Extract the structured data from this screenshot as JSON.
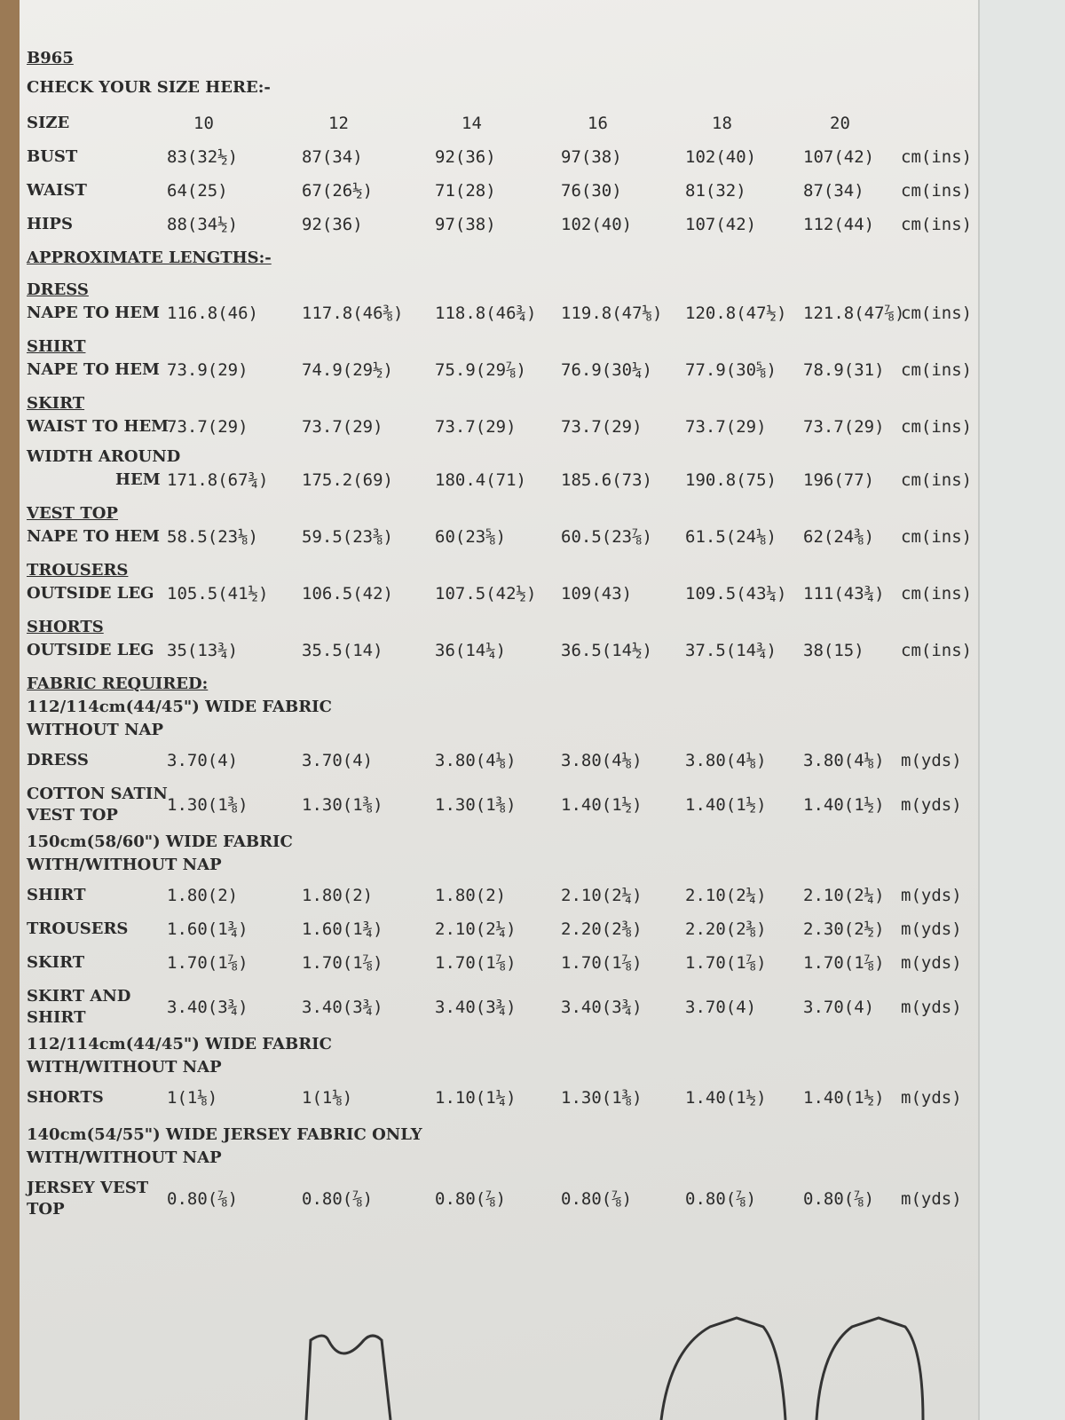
{
  "code": "B965",
  "heading": "CHECK YOUR SIZE HERE:-",
  "sizes": {
    "label": "SIZE",
    "values": [
      10,
      12,
      14,
      16,
      18,
      20
    ]
  },
  "measurements": [
    {
      "label": "BUST",
      "values": [
        "83(32½)",
        "87(34)",
        "92(36)",
        "97(38)",
        "102(40)",
        "107(42)"
      ],
      "unit": "cm(ins)"
    },
    {
      "label": "WAIST",
      "values": [
        "64(25)",
        "67(26½)",
        "71(28)",
        "76(30)",
        "81(32)",
        "87(34)"
      ],
      "unit": "cm(ins)"
    },
    {
      "label": "HIPS",
      "values": [
        "88(34½)",
        "92(36)",
        "97(38)",
        "102(40)",
        "107(42)",
        "112(44)"
      ],
      "unit": "cm(ins)"
    }
  ],
  "lengths": {
    "heading": "APPROXIMATE LENGTHS:-",
    "groups": [
      {
        "name": "DRESS",
        "rows": [
          {
            "label": [
              "NAPE TO HEM"
            ],
            "values": [
              "116.8(46)",
              "117.8(46⅜)",
              "118.8(46¾)",
              "119.8(47⅛)",
              "120.8(47½)",
              "121.8(47⅞)"
            ],
            "unit": "cm(ins)"
          }
        ]
      },
      {
        "name": "SHIRT",
        "rows": [
          {
            "label": [
              "NAPE TO HEM"
            ],
            "values": [
              "73.9(29)",
              "74.9(29½)",
              "75.9(29⅞)",
              "76.9(30¼)",
              "77.9(30⅝)",
              "78.9(31)"
            ],
            "unit": "cm(ins)"
          }
        ]
      },
      {
        "name": "SKIRT",
        "rows": [
          {
            "label": [
              "WAIST TO HEM"
            ],
            "values": [
              "73.7(29)",
              "73.7(29)",
              "73.7(29)",
              "73.7(29)",
              "73.7(29)",
              "73.7(29)"
            ],
            "unit": "cm(ins)"
          },
          {
            "label": [
              "WIDTH AROUND",
              "HEM"
            ],
            "values": [
              "171.8(67¾)",
              "175.2(69)",
              "180.4(71)",
              "185.6(73)",
              "190.8(75)",
              "196(77)"
            ],
            "unit": "cm(ins)"
          }
        ]
      },
      {
        "name": "VEST TOP",
        "rows": [
          {
            "label": [
              "NAPE TO HEM"
            ],
            "values": [
              "58.5(23⅛)",
              "59.5(23⅜)",
              "60(23⅝)",
              "60.5(23⅞)",
              "61.5(24⅛)",
              "62(24⅜)"
            ],
            "unit": "cm(ins)"
          }
        ]
      },
      {
        "name": "TROUSERS",
        "rows": [
          {
            "label": [
              "OUTSIDE LEG"
            ],
            "values": [
              "105.5(41½)",
              "106.5(42)",
              "107.5(42½)",
              "109(43)",
              "109.5(43¼)",
              "111(43¾)"
            ],
            "unit": "cm(ins)"
          }
        ]
      },
      {
        "name": "SHORTS",
        "rows": [
          {
            "label": [
              "OUTSIDE LEG"
            ],
            "values": [
              "35(13¾)",
              "35.5(14)",
              "36(14¼)",
              "36.5(14½)",
              "37.5(14¾)",
              "38(15)"
            ],
            "unit": "cm(ins)"
          }
        ]
      }
    ]
  },
  "fabric": {
    "heading": "FABRIC REQUIRED:",
    "sections": [
      {
        "title": [
          "112/114cm(44/45\") WIDE FABRIC",
          "WITHOUT NAP"
        ],
        "rows": [
          {
            "label": [
              "DRESS"
            ],
            "values": [
              "3.70(4)",
              "3.70(4)",
              "3.80(4⅛)",
              "3.80(4⅛)",
              "3.80(4⅛)",
              "3.80(4⅛)"
            ],
            "unit": "m(yds)"
          },
          {
            "label": [
              "COTTON SATIN",
              "VEST TOP"
            ],
            "values": [
              "1.30(1⅜)",
              "1.30(1⅜)",
              "1.30(1⅜)",
              "1.40(1½)",
              "1.40(1½)",
              "1.40(1½)"
            ],
            "unit": "m(yds)"
          }
        ]
      },
      {
        "title": [
          "150cm(58/60\") WIDE FABRIC",
          "WITH/WITHOUT NAP"
        ],
        "rows": [
          {
            "label": [
              "SHIRT"
            ],
            "values": [
              "1.80(2)",
              "1.80(2)",
              "1.80(2)",
              "2.10(2¼)",
              "2.10(2¼)",
              "2.10(2¼)"
            ],
            "unit": "m(yds)"
          },
          {
            "label": [
              "TROUSERS"
            ],
            "values": [
              "1.60(1¾)",
              "1.60(1¾)",
              "2.10(2¼)",
              "2.20(2⅜)",
              "2.20(2⅜)",
              "2.30(2½)"
            ],
            "unit": "m(yds)"
          },
          {
            "label": [
              "SKIRT"
            ],
            "values": [
              "1.70(1⅞)",
              "1.70(1⅞)",
              "1.70(1⅞)",
              "1.70(1⅞)",
              "1.70(1⅞)",
              "1.70(1⅞)"
            ],
            "unit": "m(yds)"
          },
          {
            "label": [
              "SKIRT AND",
              "SHIRT"
            ],
            "values": [
              "3.40(3¾)",
              "3.40(3¾)",
              "3.40(3¾)",
              "3.40(3¾)",
              "3.70(4)",
              "3.70(4)"
            ],
            "unit": "m(yds)"
          }
        ]
      },
      {
        "title": [
          "112/114cm(44/45\") WIDE FABRIC",
          "WITH/WITHOUT NAP"
        ],
        "rows": [
          {
            "label": [
              "SHORTS"
            ],
            "values": [
              "1(1⅛)",
              "1(1⅛)",
              "1.10(1¼)",
              "1.30(1⅜)",
              "1.40(1½)",
              "1.40(1½)"
            ],
            "unit": "m(yds)"
          }
        ]
      },
      {
        "title": [
          "140cm(54/55\") WIDE JERSEY FABRIC ONLY",
          "WITH/WITHOUT NAP"
        ],
        "rows": [
          {
            "label": [
              "JERSEY VEST",
              "TOP"
            ],
            "values": [
              "0.80(⅞)",
              "0.80(⅞)",
              "0.80(⅞)",
              "0.80(⅞)",
              "0.80(⅞)",
              "0.80(⅞)"
            ],
            "unit": "m(yds)"
          }
        ]
      }
    ]
  }
}
